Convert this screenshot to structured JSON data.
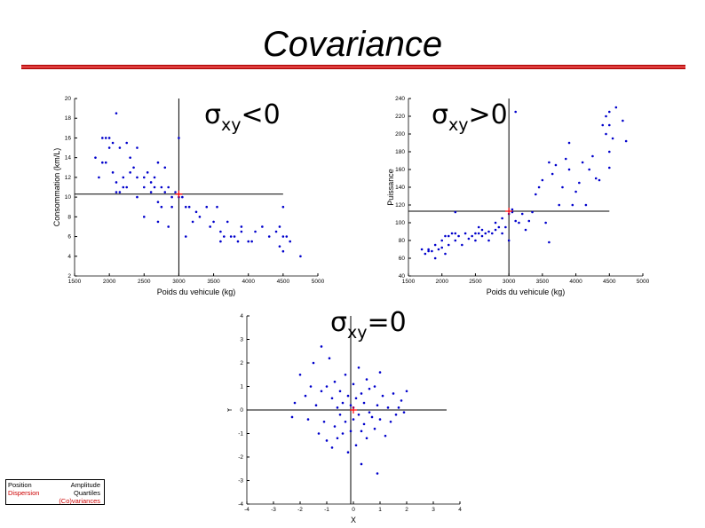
{
  "slide": {
    "title": "Covariance",
    "accent_color": "#dd3b3b"
  },
  "labels": {
    "neg": {
      "sigma": "σ",
      "sub": "xy",
      "rel": "<0"
    },
    "pos": {
      "sigma": "σ",
      "sub": "xy",
      "rel": ">0"
    },
    "zero": {
      "sigma": "σ",
      "sub": "xy",
      "rel": "=0"
    }
  },
  "legend": {
    "position": "Position",
    "dispersion": "Dispersion",
    "amplitude": "Amplitude",
    "quartiles": "Quartiles",
    "covariances": "(Co)variances",
    "highlight_color": "#cc0000"
  },
  "chart_data": [
    {
      "type": "scatter",
      "name": "plot-negative",
      "xlabel": "Poids du vehicule (kg)",
      "ylabel": "Consommation (km/L)",
      "xlim": [
        1500,
        5000
      ],
      "ylim": [
        2,
        20
      ],
      "xticks": [
        1500,
        2000,
        2500,
        3000,
        3500,
        4000,
        4500,
        5000
      ],
      "yticks": [
        2,
        4,
        6,
        8,
        10,
        12,
        14,
        16,
        18,
        20
      ],
      "mean": [
        3000,
        10.3
      ],
      "vline_x": 3000,
      "hline_y": 10.3,
      "hline_xrange": [
        1500,
        4500
      ],
      "point_color": "#0000cc",
      "mean_color": "#ff0000",
      "points": [
        [
          1800,
          14
        ],
        [
          1850,
          12
        ],
        [
          1900,
          16
        ],
        [
          1950,
          16
        ],
        [
          1900,
          13.5
        ],
        [
          1950,
          13.5
        ],
        [
          2000,
          16
        ],
        [
          2000,
          15
        ],
        [
          2050,
          15.5
        ],
        [
          2050,
          12.5
        ],
        [
          2100,
          11.5
        ],
        [
          2100,
          10.5
        ],
        [
          2150,
          15
        ],
        [
          2150,
          10.5
        ],
        [
          2200,
          12
        ],
        [
          2200,
          11
        ],
        [
          2250,
          11
        ],
        [
          2250,
          15.5
        ],
        [
          2100,
          18.5
        ],
        [
          2300,
          12.5
        ],
        [
          2300,
          14
        ],
        [
          2350,
          13
        ],
        [
          2400,
          15
        ],
        [
          2400,
          12
        ],
        [
          2400,
          10
        ],
        [
          2500,
          12
        ],
        [
          2500,
          11
        ],
        [
          2500,
          8
        ],
        [
          2550,
          12.5
        ],
        [
          2600,
          11.5
        ],
        [
          2600,
          10.5
        ],
        [
          2650,
          12
        ],
        [
          2650,
          11
        ],
        [
          2700,
          13.5
        ],
        [
          2700,
          9.5
        ],
        [
          2700,
          7.5
        ],
        [
          2750,
          11
        ],
        [
          2750,
          9
        ],
        [
          2800,
          13
        ],
        [
          2800,
          10.5
        ],
        [
          2850,
          11
        ],
        [
          2850,
          7
        ],
        [
          2900,
          10
        ],
        [
          2900,
          9
        ],
        [
          2950,
          10.5
        ],
        [
          3000,
          16
        ],
        [
          3000,
          10
        ],
        [
          3050,
          10
        ],
        [
          3100,
          9
        ],
        [
          3100,
          6
        ],
        [
          3150,
          9
        ],
        [
          3200,
          7.5
        ],
        [
          3250,
          8.5
        ],
        [
          3300,
          8
        ],
        [
          3400,
          9
        ],
        [
          3450,
          7
        ],
        [
          3500,
          7.5
        ],
        [
          3550,
          9
        ],
        [
          3600,
          6.5
        ],
        [
          3600,
          5.5
        ],
        [
          3650,
          6
        ],
        [
          3700,
          7.5
        ],
        [
          3750,
          6
        ],
        [
          3800,
          6
        ],
        [
          3850,
          5.5
        ],
        [
          3900,
          6.5
        ],
        [
          3900,
          7
        ],
        [
          4000,
          5.5
        ],
        [
          4050,
          5.5
        ],
        [
          4100,
          6.5
        ],
        [
          4200,
          7
        ],
        [
          4300,
          6
        ],
        [
          4400,
          6.5
        ],
        [
          4450,
          5
        ],
        [
          4500,
          4.5
        ],
        [
          4450,
          7
        ],
        [
          4500,
          6
        ],
        [
          4550,
          6
        ],
        [
          4500,
          9
        ],
        [
          4600,
          5.5
        ],
        [
          4750,
          4
        ]
      ]
    },
    {
      "type": "scatter",
      "name": "plot-positive",
      "xlabel": "Poids du vehicule (kg)",
      "ylabel": "Puissance",
      "xlim": [
        1500,
        5000
      ],
      "ylim": [
        40,
        240
      ],
      "xticks": [
        1500,
        2000,
        2500,
        3000,
        3500,
        4000,
        4500,
        5000
      ],
      "yticks": [
        40,
        60,
        80,
        100,
        120,
        140,
        160,
        180,
        200,
        220,
        240
      ],
      "mean": [
        3000,
        113
      ],
      "vline_x": 3000,
      "hline_y": 113,
      "hline_xrange": [
        1500,
        4500
      ],
      "point_color": "#0000cc",
      "mean_color": "#ff0000",
      "points": [
        [
          1700,
          70
        ],
        [
          1750,
          65
        ],
        [
          1800,
          70
        ],
        [
          1800,
          68
        ],
        [
          1850,
          68
        ],
        [
          1900,
          75
        ],
        [
          1900,
          60
        ],
        [
          1950,
          70
        ],
        [
          2000,
          80
        ],
        [
          2000,
          72
        ],
        [
          2050,
          85
        ],
        [
          2050,
          65
        ],
        [
          2100,
          85
        ],
        [
          2100,
          75
        ],
        [
          2150,
          88
        ],
        [
          2200,
          88
        ],
        [
          2200,
          80
        ],
        [
          2200,
          112
        ],
        [
          2250,
          85
        ],
        [
          2300,
          75
        ],
        [
          2350,
          88
        ],
        [
          2400,
          82
        ],
        [
          2450,
          85
        ],
        [
          2500,
          88
        ],
        [
          2500,
          80
        ],
        [
          2550,
          88
        ],
        [
          2550,
          95
        ],
        [
          2600,
          92
        ],
        [
          2600,
          85
        ],
        [
          2650,
          88
        ],
        [
          2700,
          90
        ],
        [
          2700,
          80
        ],
        [
          2750,
          88
        ],
        [
          2800,
          92
        ],
        [
          2800,
          100
        ],
        [
          2850,
          95
        ],
        [
          2900,
          105
        ],
        [
          2900,
          88
        ],
        [
          2950,
          95
        ],
        [
          3000,
          110
        ],
        [
          3000,
          80
        ],
        [
          3050,
          112
        ],
        [
          3050,
          115
        ],
        [
          3100,
          102
        ],
        [
          3100,
          225
        ],
        [
          3150,
          100
        ],
        [
          3200,
          110
        ],
        [
          3250,
          92
        ],
        [
          3300,
          102
        ],
        [
          3350,
          112
        ],
        [
          3400,
          132
        ],
        [
          3450,
          140
        ],
        [
          3500,
          148
        ],
        [
          3550,
          100
        ],
        [
          3600,
          168
        ],
        [
          3600,
          78
        ],
        [
          3650,
          155
        ],
        [
          3700,
          165
        ],
        [
          3750,
          120
        ],
        [
          3800,
          140
        ],
        [
          3850,
          172
        ],
        [
          3900,
          190
        ],
        [
          3900,
          160
        ],
        [
          3950,
          120
        ],
        [
          4000,
          135
        ],
        [
          4050,
          145
        ],
        [
          4100,
          168
        ],
        [
          4150,
          120
        ],
        [
          4200,
          160
        ],
        [
          4250,
          175
        ],
        [
          4300,
          150
        ],
        [
          4350,
          148
        ],
        [
          4400,
          210
        ],
        [
          4450,
          200
        ],
        [
          4450,
          220
        ],
        [
          4500,
          225
        ],
        [
          4500,
          210
        ],
        [
          4500,
          180
        ],
        [
          4550,
          195
        ],
        [
          4600,
          230
        ],
        [
          4700,
          215
        ],
        [
          4750,
          192
        ],
        [
          4500,
          162
        ]
      ]
    },
    {
      "type": "scatter",
      "name": "plot-zero",
      "xlabel": "X",
      "ylabel": "Y",
      "xlim": [
        -4,
        4
      ],
      "ylim": [
        -4,
        4
      ],
      "xticks": [
        -4,
        -3,
        -2,
        -1,
        0,
        1,
        2,
        3,
        4
      ],
      "yticks": [
        -4,
        -3,
        -2,
        -1,
        0,
        1,
        2,
        3,
        4
      ],
      "mean": [
        0,
        0
      ],
      "vline_x": -0.1,
      "hline_y": 0,
      "hline_xrange": [
        -4,
        3.5
      ],
      "point_color": "#0000cc",
      "mean_color": "#ff0000",
      "points": [
        [
          -2.3,
          -0.3
        ],
        [
          -2.2,
          0.3
        ],
        [
          -2,
          1.5
        ],
        [
          -1.8,
          0.6
        ],
        [
          -1.7,
          -0.4
        ],
        [
          -1.6,
          1
        ],
        [
          -1.5,
          2
        ],
        [
          -1.4,
          0.2
        ],
        [
          -1.3,
          -1
        ],
        [
          -1.2,
          2.7
        ],
        [
          -1.2,
          0.8
        ],
        [
          -1.1,
          -0.5
        ],
        [
          -1,
          1
        ],
        [
          -1,
          -1.3
        ],
        [
          -0.9,
          2.2
        ],
        [
          -0.8,
          0.5
        ],
        [
          -0.8,
          -1.6
        ],
        [
          -0.7,
          1.2
        ],
        [
          -0.7,
          -0.7
        ],
        [
          -0.6,
          0.1
        ],
        [
          -0.6,
          -1.2
        ],
        [
          -0.5,
          0.8
        ],
        [
          -0.5,
          -0.2
        ],
        [
          -0.4,
          0.3
        ],
        [
          -0.4,
          -1
        ],
        [
          -0.3,
          1.5
        ],
        [
          -0.3,
          -0.5
        ],
        [
          -0.2,
          0.6
        ],
        [
          -0.2,
          -1.8
        ],
        [
          -0.1,
          0.2
        ],
        [
          -0.1,
          -0.9
        ],
        [
          0,
          1.1
        ],
        [
          0,
          0.1
        ],
        [
          0,
          -0.4
        ],
        [
          0.1,
          -1.5
        ],
        [
          0.1,
          0.5
        ],
        [
          0.2,
          1.8
        ],
        [
          0.2,
          -0.2
        ],
        [
          0.3,
          0.7
        ],
        [
          0.3,
          -0.9
        ],
        [
          0.3,
          -2.3
        ],
        [
          0.4,
          0.3
        ],
        [
          0.4,
          -0.6
        ],
        [
          0.5,
          1.3
        ],
        [
          0.5,
          -1.2
        ],
        [
          0.6,
          0.9
        ],
        [
          0.6,
          -0.1
        ],
        [
          0.7,
          -0.3
        ],
        [
          0.8,
          -0.8
        ],
        [
          0.8,
          1
        ],
        [
          0.9,
          0.2
        ],
        [
          0.9,
          -2.7
        ],
        [
          1,
          1.6
        ],
        [
          1,
          -0.4
        ],
        [
          1.1,
          0.6
        ],
        [
          1.2,
          -1.1
        ],
        [
          1.3,
          0.1
        ],
        [
          1.4,
          -0.5
        ],
        [
          1.5,
          0.7
        ],
        [
          1.6,
          -0.2
        ],
        [
          1.7,
          0.1
        ],
        [
          1.8,
          0.4
        ],
        [
          1.9,
          -0.1
        ],
        [
          2,
          0.8
        ]
      ]
    }
  ]
}
